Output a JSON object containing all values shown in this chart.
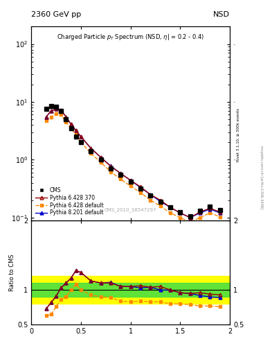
{
  "title_top_left": "2360 GeV pp",
  "title_top_right": "NSD",
  "analysis_id": "CMS_2010_S8547297",
  "ylabel_ratio": "Ratio to CMS",
  "xlim": [
    0.0,
    2.0
  ],
  "ylim_main": [
    0.09,
    200
  ],
  "ylim_ratio": [
    0.5,
    2.0
  ],
  "cms_x": [
    0.15,
    0.2,
    0.25,
    0.3,
    0.35,
    0.4,
    0.45,
    0.5,
    0.6,
    0.7,
    0.8,
    0.9,
    1.0,
    1.1,
    1.2,
    1.3,
    1.4,
    1.5,
    1.6,
    1.7,
    1.8,
    1.9
  ],
  "cms_y": [
    7.5,
    8.5,
    8.2,
    7.0,
    5.0,
    3.5,
    2.5,
    2.0,
    1.4,
    1.0,
    0.7,
    0.55,
    0.42,
    0.32,
    0.24,
    0.19,
    0.15,
    0.125,
    0.105,
    0.13,
    0.155,
    0.135
  ],
  "py6_370_x": [
    0.15,
    0.2,
    0.25,
    0.3,
    0.35,
    0.4,
    0.45,
    0.5,
    0.6,
    0.7,
    0.8,
    0.9,
    1.0,
    1.1,
    1.2,
    1.3,
    1.4,
    1.5,
    1.6,
    1.7,
    1.8,
    1.9
  ],
  "py6_370_y": [
    5.5,
    7.0,
    7.5,
    7.2,
    5.5,
    4.1,
    3.2,
    2.5,
    1.58,
    1.1,
    0.77,
    0.58,
    0.44,
    0.34,
    0.25,
    0.2,
    0.15,
    0.12,
    0.1,
    0.125,
    0.145,
    0.125
  ],
  "py6_def_x": [
    0.15,
    0.2,
    0.25,
    0.3,
    0.35,
    0.4,
    0.45,
    0.5,
    0.6,
    0.7,
    0.8,
    0.9,
    1.0,
    1.1,
    1.2,
    1.3,
    1.4,
    1.5,
    1.6,
    1.7,
    1.8,
    1.9
  ],
  "py6_def_y": [
    4.7,
    5.5,
    6.2,
    6.0,
    4.5,
    3.5,
    2.7,
    2.0,
    1.3,
    0.9,
    0.62,
    0.46,
    0.35,
    0.27,
    0.2,
    0.158,
    0.12,
    0.1,
    0.083,
    0.1,
    0.12,
    0.103
  ],
  "py8_def_x": [
    0.15,
    0.2,
    0.25,
    0.3,
    0.35,
    0.4,
    0.45,
    0.5,
    0.6,
    0.7,
    0.8,
    0.9,
    1.0,
    1.1,
    1.2,
    1.3,
    1.4,
    1.5,
    1.6,
    1.7,
    1.8,
    1.9
  ],
  "py8_def_y": [
    5.5,
    7.0,
    7.5,
    7.2,
    5.5,
    4.1,
    3.2,
    2.5,
    1.58,
    1.1,
    0.78,
    0.58,
    0.44,
    0.33,
    0.25,
    0.19,
    0.15,
    0.12,
    0.1,
    0.12,
    0.14,
    0.12
  ],
  "ratio_x": [
    0.15,
    0.2,
    0.25,
    0.3,
    0.35,
    0.4,
    0.45,
    0.5,
    0.6,
    0.7,
    0.8,
    0.9,
    1.0,
    1.1,
    1.2,
    1.3,
    1.4,
    1.5,
    1.6,
    1.7,
    1.8,
    1.9
  ],
  "ratio_py6_370": [
    0.73,
    0.82,
    0.91,
    1.03,
    1.1,
    1.17,
    1.28,
    1.25,
    1.13,
    1.1,
    1.1,
    1.05,
    1.05,
    1.06,
    1.04,
    1.05,
    1.0,
    0.96,
    0.95,
    0.96,
    0.94,
    0.93
  ],
  "ratio_py6_def": [
    0.63,
    0.65,
    0.76,
    0.86,
    0.9,
    1.0,
    1.08,
    1.0,
    0.93,
    0.9,
    0.89,
    0.84,
    0.83,
    0.84,
    0.83,
    0.83,
    0.8,
    0.8,
    0.79,
    0.77,
    0.77,
    0.76
  ],
  "ratio_py8_def": [
    0.73,
    0.82,
    0.91,
    1.03,
    1.1,
    1.17,
    1.28,
    1.25,
    1.13,
    1.1,
    1.11,
    1.05,
    1.05,
    1.03,
    1.04,
    1.0,
    1.0,
    0.96,
    0.95,
    0.92,
    0.9,
    0.89
  ],
  "green_band": [
    0.9,
    1.1
  ],
  "yellow_band": [
    0.8,
    1.2
  ],
  "color_cms": "#000000",
  "color_py6_370": "#990000",
  "color_py6_def": "#ff8800",
  "color_py8_def": "#0000cc"
}
